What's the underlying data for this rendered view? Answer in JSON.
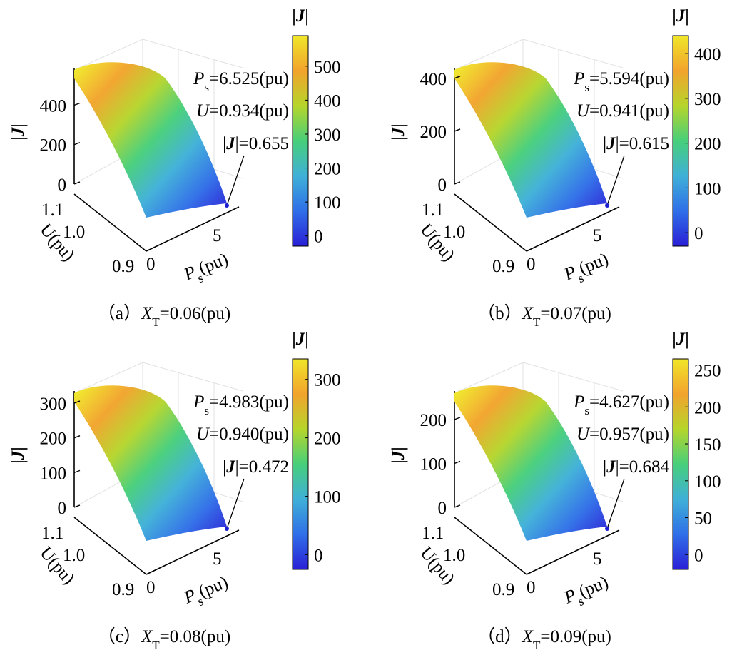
{
  "figure": {
    "colorbar_stops": [
      "#2a1fd6",
      "#2f6fe8",
      "#3fb0d8",
      "#47cf7a",
      "#b6d52b",
      "#f2a32c",
      "#f0e629"
    ]
  },
  "chart_data": [
    {
      "id": "a",
      "type": "surface3d",
      "caption": {
        "prefix": "（a）",
        "var": "X",
        "sub": "T",
        "rest": "=0.06(pu)"
      },
      "zlabel": "|J|",
      "zlabel_parts": [
        "|",
        "J",
        "|"
      ],
      "xlabel": "Ps(pu)",
      "xlabel_parts": [
        "P",
        "s",
        "(pu)"
      ],
      "ylabel": "U(pu)",
      "z_ticks": [
        0,
        200,
        400
      ],
      "u_ticks": [
        "1.1",
        "1.0",
        "0.9"
      ],
      "ps_ticks": [
        "0",
        "5"
      ],
      "colorbar": {
        "label": "|J|",
        "min": -30,
        "max": 590,
        "ticks": [
          0,
          100,
          200,
          300,
          400,
          500
        ]
      },
      "z_max": 590,
      "annotation": {
        "ps_name": "P",
        "ps_sub": "s",
        "ps_value": "=6.525(pu)",
        "u_name": "U",
        "u_value": "=0.934(pu)",
        "j_pre": "|",
        "j_name": "J",
        "j_value": "|=0.655"
      }
    },
    {
      "id": "b",
      "type": "surface3d",
      "caption": {
        "prefix": "（b）",
        "var": "X",
        "sub": "T",
        "rest": "=0.07(pu)"
      },
      "zlabel": "|J|",
      "zlabel_parts": [
        "|",
        "J",
        "|"
      ],
      "xlabel": "Ps(pu)",
      "xlabel_parts": [
        "P",
        "s",
        "(pu)"
      ],
      "ylabel": "U(pu)",
      "z_ticks": [
        0,
        200,
        400
      ],
      "u_ticks": [
        "1.1",
        "1.0",
        "0.9"
      ],
      "ps_ticks": [
        "0",
        "5"
      ],
      "colorbar": {
        "label": "|J|",
        "min": -30,
        "max": 440,
        "ticks": [
          0,
          100,
          200,
          300,
          400
        ]
      },
      "z_max": 440,
      "annotation": {
        "ps_name": "P",
        "ps_sub": "s",
        "ps_value": "=5.594(pu)",
        "u_name": "U",
        "u_value": "=0.941(pu)",
        "j_pre": "|",
        "j_name": "J",
        "j_value": "|=0.615"
      }
    },
    {
      "id": "c",
      "type": "surface3d",
      "caption": {
        "prefix": "（c）",
        "var": "X",
        "sub": "T",
        "rest": "=0.08(pu)"
      },
      "zlabel": "|J|",
      "zlabel_parts": [
        "|",
        "J",
        "|"
      ],
      "xlabel": "Ps(pu)",
      "xlabel_parts": [
        "P",
        "s",
        "(pu)"
      ],
      "ylabel": "U(pu)",
      "z_ticks": [
        0,
        100,
        200,
        300
      ],
      "u_ticks": [
        "1.1",
        "1.0",
        "0.9"
      ],
      "ps_ticks": [
        "0",
        "5"
      ],
      "colorbar": {
        "label": "|J|",
        "min": -25,
        "max": 335,
        "ticks": [
          0,
          100,
          200,
          300
        ]
      },
      "z_max": 335,
      "annotation": {
        "ps_name": "P",
        "ps_sub": "s",
        "ps_value": "=4.983(pu)",
        "u_name": "U",
        "u_value": "=0.940(pu)",
        "j_pre": "|",
        "j_name": "J",
        "j_value": "|=0.472"
      }
    },
    {
      "id": "d",
      "type": "surface3d",
      "caption": {
        "prefix": "（d）",
        "var": "X",
        "sub": "T",
        "rest": "=0.09(pu)"
      },
      "zlabel": "|J|",
      "zlabel_parts": [
        "|",
        "J",
        "|"
      ],
      "xlabel": "Ps(pu)",
      "xlabel_parts": [
        "P",
        "s",
        "(pu)"
      ],
      "ylabel": "U(pu)",
      "z_ticks": [
        0,
        100,
        200
      ],
      "u_ticks": [
        "1.1",
        "1.0",
        "0.9"
      ],
      "ps_ticks": [
        "0",
        "5"
      ],
      "colorbar": {
        "label": "|J|",
        "min": -20,
        "max": 265,
        "ticks": [
          0,
          50,
          100,
          150,
          200,
          250
        ]
      },
      "z_max": 265,
      "annotation": {
        "ps_name": "P",
        "ps_sub": "s",
        "ps_value": "=4.627(pu)",
        "u_name": "U",
        "u_value": "=0.957(pu)",
        "j_pre": "|",
        "j_name": "J",
        "j_value": "|=0.684"
      }
    }
  ]
}
